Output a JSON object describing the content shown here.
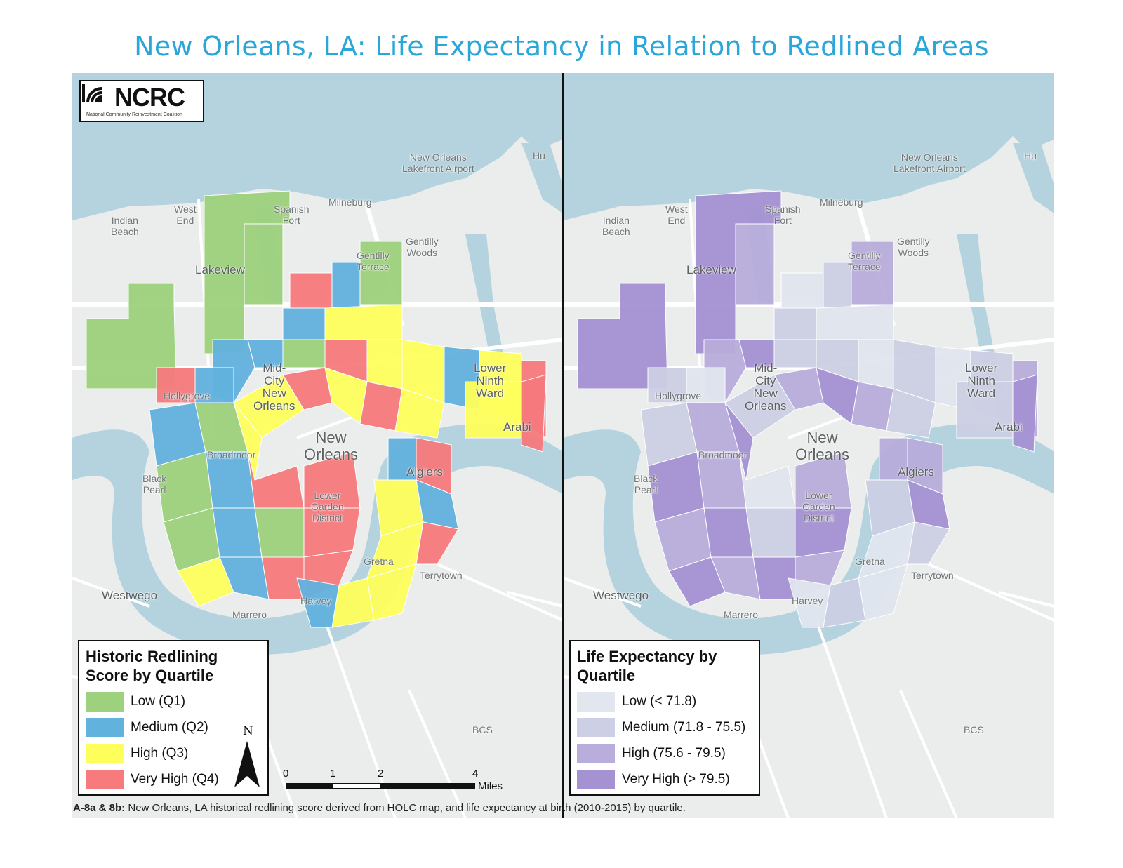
{
  "title": "New Orleans, LA: Life Expectancy in Relation to Redlined Areas",
  "logo": {
    "name": "NCRC",
    "subtitle": "National Community Reinvestment Coalition"
  },
  "places": {
    "airport": "New Orleans\nLakefront Airport",
    "milneburg": "Milneburg",
    "spanish_fort": "Spanish\nFort",
    "west_end": "West\nEnd",
    "indian_beach": "Indian\nBeach",
    "gentilly_woods": "Gentilly\nWoods",
    "gentilly_terrace": "Gentilly\nTerrace",
    "lakeview": "Lakeview",
    "mid_city": "Mid-\nCity\nNew\nOrleans",
    "hollygrove": "Hollygrove",
    "lower_ninth": "Lower\nNinth\nWard",
    "arabi": "Arabi",
    "new_orleans": "New\nOrleans",
    "broadmoor": "Broadmoor",
    "black_pearl": "Black\nPearl",
    "lower_garden": "Lower\nGarden\nDistrict",
    "algiers": "Algiers",
    "gretna": "Gretna",
    "terrytown": "Terrytown",
    "westwego": "Westwego",
    "harvey": "Harvey",
    "marrero": "Marrero",
    "bcs": "BCS",
    "hu": "Hu"
  },
  "legend_a": {
    "title_line1": "Historic Redlining",
    "title_line2": "Score by Quartile",
    "items": [
      {
        "label": "Low (Q1)",
        "color": "#9dd17d"
      },
      {
        "label": "Medium (Q2)",
        "color": "#62b2de"
      },
      {
        "label": "High (Q3)",
        "color": "#ffff5c"
      },
      {
        "label": "Very High (Q4)",
        "color": "#f77a7d"
      }
    ]
  },
  "legend_b": {
    "title_line1": "Life Expectancy by",
    "title_line2": "Quartile",
    "items": [
      {
        "label": "Low (< 71.8)",
        "color": "#e1e6ef"
      },
      {
        "label": "Medium (71.8 - 75.5)",
        "color": "#cdcfe4"
      },
      {
        "label": "High (75.6 - 79.5)",
        "color": "#b9addb"
      },
      {
        "label": "Very High (> 79.5)",
        "color": "#a592d3"
      }
    ]
  },
  "north_label": "N",
  "scale": {
    "ticks": [
      "0",
      "1",
      "2",
      "4"
    ],
    "unit": "Miles"
  },
  "caption": {
    "bold": "A-8a & 8b:",
    "text": " New Orleans, LA historical redlining score derived from HOLC map, and life expectancy at birth (2010-2015) by quartile."
  }
}
